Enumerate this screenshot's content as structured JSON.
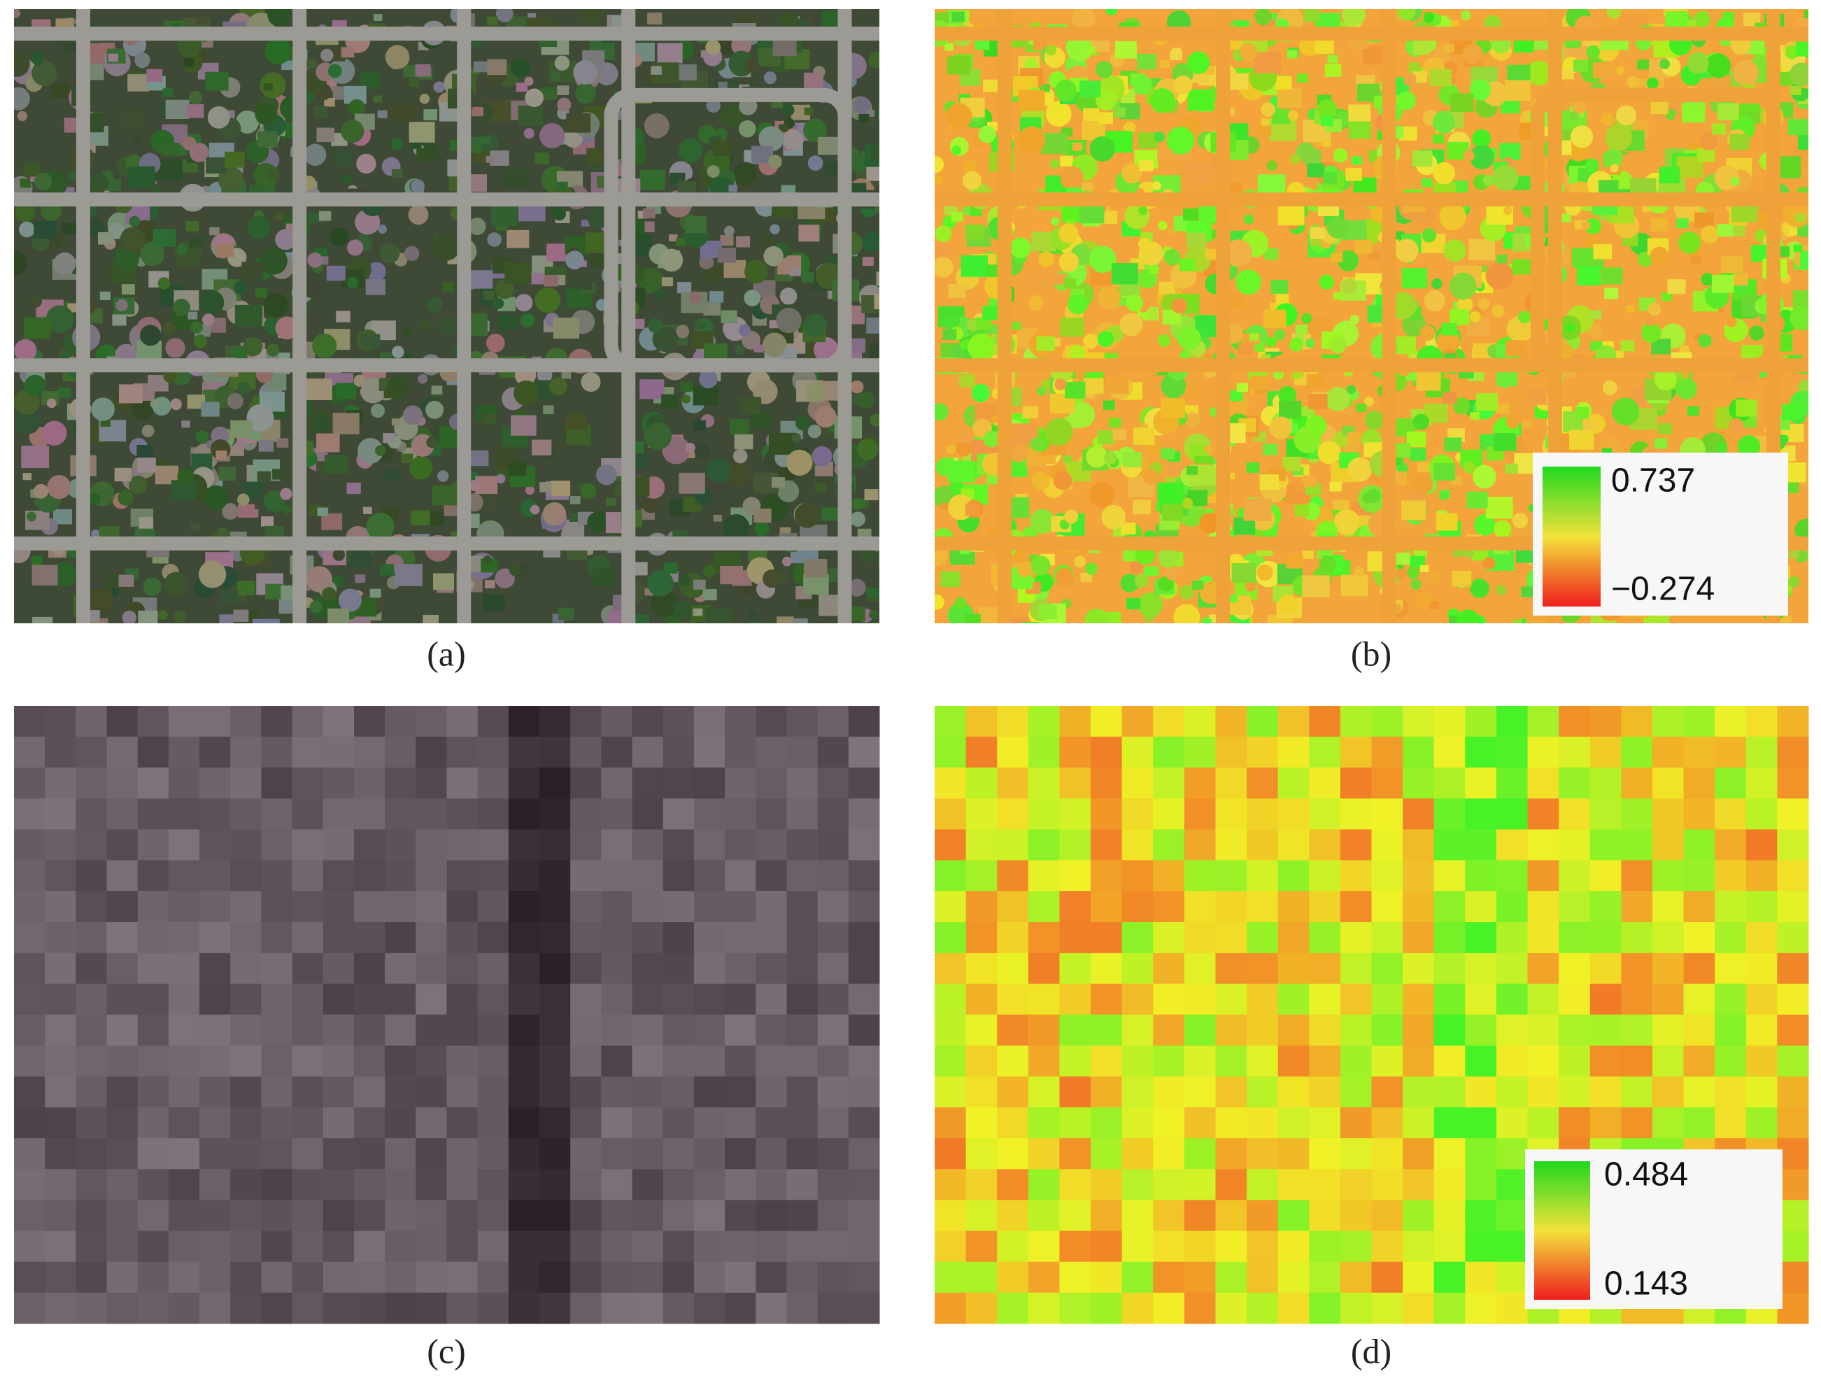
{
  "panels": [
    {
      "caption": "(a)"
    },
    {
      "caption": "(b)",
      "legend": {
        "max": "0.737",
        "min": "−0.274"
      }
    },
    {
      "caption": "(c)"
    },
    {
      "caption": "(d)",
      "legend": {
        "max": "0.484",
        "min": "0.143"
      }
    }
  ]
}
